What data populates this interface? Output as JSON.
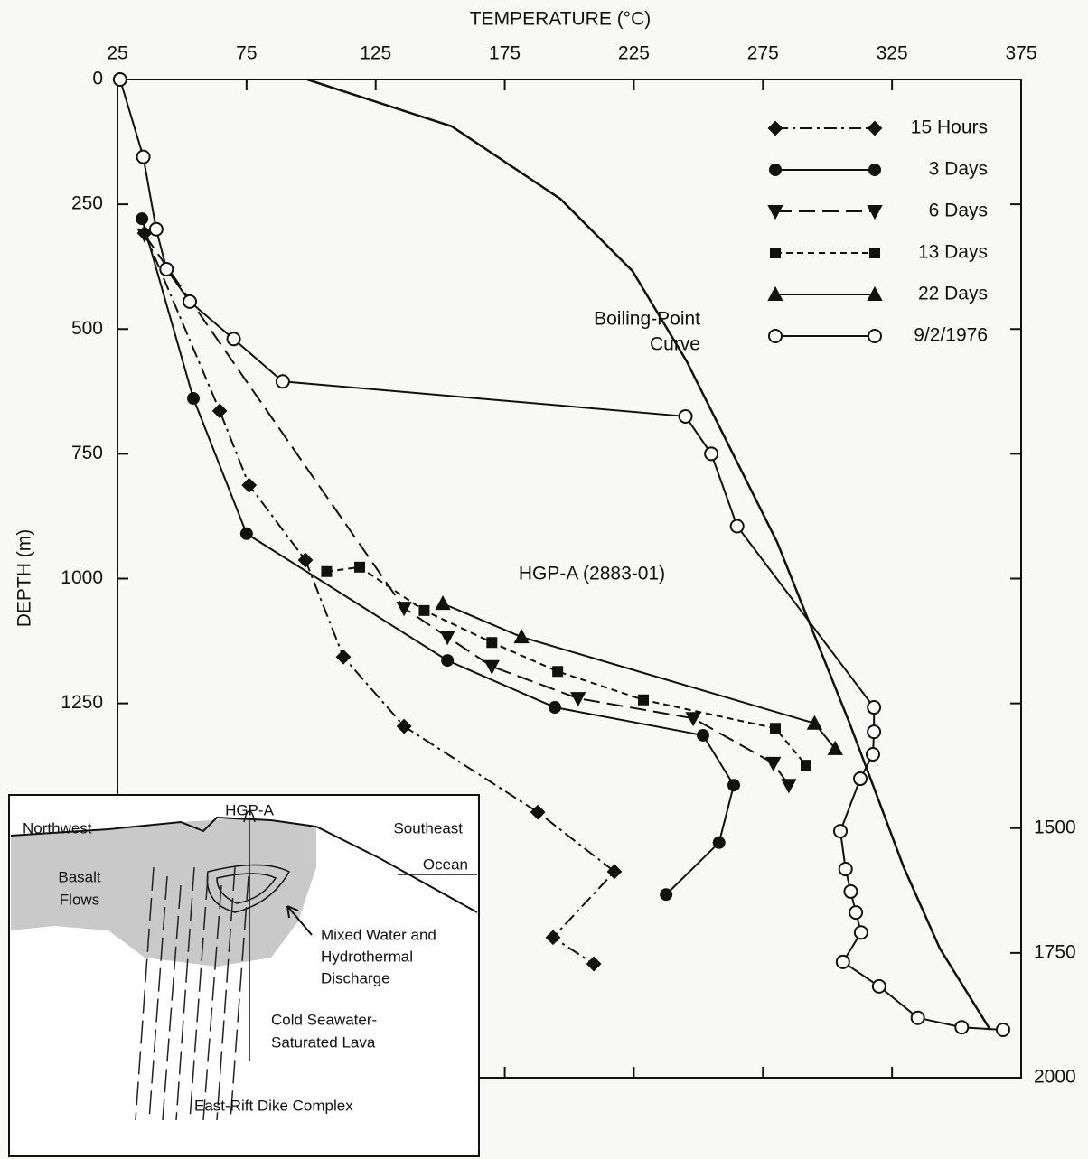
{
  "chart_data": {
    "type": "line",
    "x_label": "TEMPERATURE (°C)",
    "y_label": "DEPTH (m)",
    "xlim": [
      25,
      375
    ],
    "xticks": [
      25,
      75,
      125,
      175,
      225,
      275,
      325,
      375
    ],
    "ylim": [
      0,
      2000
    ],
    "yticks": [
      0,
      250,
      500,
      750,
      1000,
      1250,
      1500,
      1750,
      2000
    ],
    "y_inverted": true,
    "legend_position": "upper right",
    "series": [
      {
        "name": "15 Hours",
        "color": "#111111",
        "line_style": "dashdot",
        "marker": "diamond",
        "x": [
          35.5,
          64.6,
          76,
          97.8,
          112.5,
          136,
          187.8,
          217.5,
          193.7,
          209.5
        ],
        "values": [
          308,
          664,
          813,
          963,
          1157,
          1296,
          1468,
          1587,
          1719,
          1772
        ]
      },
      {
        "name": "3 Days",
        "color": "#111111",
        "line_style": "solid",
        "marker": "circle",
        "x": [
          34.5,
          54.4,
          75,
          152.8,
          194.4,
          251.8,
          263.7,
          258,
          237.5
        ],
        "values": [
          279,
          639,
          910,
          1164,
          1258,
          1314,
          1414,
          1529,
          1633
        ]
      },
      {
        "name": "6 Days",
        "color": "#111111",
        "line_style": "longdash",
        "marker": "triangle-down",
        "x": [
          35.5,
          136,
          152.8,
          170,
          203.4,
          248,
          279,
          285
        ],
        "values": [
          311,
          1059,
          1117,
          1176,
          1240,
          1280,
          1370,
          1414
        ]
      },
      {
        "name": "13 Days",
        "color": "#111111",
        "line_style": "shortdash",
        "marker": "square",
        "x": [
          106,
          118.8,
          143.8,
          170,
          195.5,
          228.7,
          279.8,
          291.7
        ],
        "values": [
          986,
          977,
          1064,
          1128,
          1186,
          1243,
          1300,
          1374
        ]
      },
      {
        "name": "22 Days",
        "color": "#111111",
        "line_style": "solid",
        "marker": "triangle-up",
        "x": [
          151,
          181.5,
          295,
          303
        ],
        "values": [
          1050,
          1117,
          1290,
          1341
        ]
      },
      {
        "name": "9/2/1976",
        "color": "#111111",
        "line_style": "solid",
        "marker": "open-circle",
        "x": [
          26,
          35,
          40,
          44,
          53,
          70,
          89,
          245,
          255,
          265,
          318,
          318,
          317.6,
          312.7,
          305,
          307,
          309,
          311,
          313,
          306,
          320,
          335,
          352,
          368
        ],
        "values": [
          0,
          155,
          300,
          380,
          445,
          520,
          605,
          675,
          750,
          895,
          1258,
          1307,
          1352,
          1401,
          1506,
          1582,
          1627,
          1669,
          1709,
          1768,
          1817,
          1880,
          1899,
          1904
        ]
      }
    ],
    "boiling_curve": {
      "label": [
        "Boiling-Point",
        "Curve"
      ],
      "color": "#111111",
      "x": [
        98.5,
        154.5,
        196.5,
        224.5,
        245.5,
        263,
        280.5,
        294.5,
        308.5,
        319,
        329.5,
        343.5,
        363
      ],
      "values": [
        0,
        94,
        239,
        384,
        565,
        746,
        927,
        1108,
        1289,
        1433,
        1578,
        1741,
        1904
      ]
    },
    "annotations": [
      "HGP-A (2883-01)"
    ],
    "inset": {
      "labels": [
        "Northwest",
        "HGP-A",
        "Southeast",
        "Ocean",
        "Basalt",
        "Flows",
        "Mixed Water and",
        "Hydrothermal",
        "Discharge",
        "Cold Seawater-",
        "Saturated Lava",
        "East-Rift Dike Complex"
      ]
    }
  }
}
